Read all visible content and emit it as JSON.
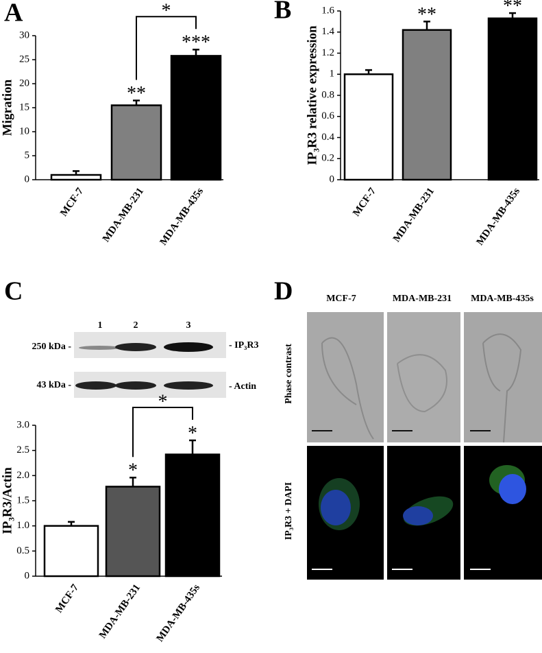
{
  "chart_data": [
    {
      "type": "bar",
      "label": "A",
      "ylabel": "Migration",
      "categories": [
        "MCF-7",
        "MDA-MB-231",
        "MDA-MB-435s"
      ],
      "values": [
        1,
        15.5,
        25.8
      ],
      "errors": [
        0.8,
        1.0,
        1.3
      ],
      "colors": [
        "#ffffff",
        "#808080",
        "#000000"
      ],
      "significance": [
        null,
        "**",
        "***"
      ],
      "bracket": "*",
      "ylim": [
        0,
        30
      ],
      "yticks": [
        0,
        5,
        10,
        15,
        20,
        25,
        30
      ]
    },
    {
      "type": "bar",
      "label": "B",
      "ylabel": "IP₃R3 relative expression",
      "categories": [
        "MCF-7",
        "MDA-MB-231",
        "MDA-MB-435s"
      ],
      "values": [
        1.0,
        1.42,
        1.53
      ],
      "errors": [
        0.04,
        0.08,
        0.05
      ],
      "colors": [
        "#ffffff",
        "#808080",
        "#000000"
      ],
      "significance": [
        null,
        "**",
        "**"
      ],
      "ylim": [
        0,
        1.6
      ],
      "yticks": [
        0,
        0.2,
        0.4,
        0.6,
        0.8,
        1,
        1.2,
        1.4,
        1.6
      ]
    },
    {
      "type": "bar",
      "label": "C",
      "ylabel": "IP₃R3/Actin",
      "categories": [
        "MCF-7",
        "MDA-MB-231",
        "MDA-MB-435s"
      ],
      "values": [
        1.0,
        1.78,
        2.42
      ],
      "errors": [
        0.08,
        0.18,
        0.28
      ],
      "colors": [
        "#ffffff",
        "#555555",
        "#000000"
      ],
      "significance": [
        null,
        "*",
        "*"
      ],
      "bracket": "*",
      "ylim": [
        0,
        3.0
      ],
      "yticks": [
        0,
        0.5,
        {
          "value": 1.0,
          "label": "1.0"
        },
        1.5,
        {
          "value": 2.0,
          "label": "2.0"
        },
        2.5,
        {
          "value": 3.0,
          "label": "3.0"
        }
      ]
    }
  ],
  "blot": {
    "lanes": [
      "1",
      "2",
      "3"
    ],
    "rows": [
      {
        "size": "250 kDa -",
        "protein": "- IP₃R3"
      },
      {
        "size": "43 kDa -",
        "protein": "- Actin"
      }
    ]
  },
  "panel_d": {
    "label": "D",
    "columns": [
      "MCF-7",
      "MDA-MB-231",
      "MDA-MB-435s"
    ],
    "rows": [
      "Phase contrast",
      "IP₃R3 + DAPI"
    ]
  }
}
